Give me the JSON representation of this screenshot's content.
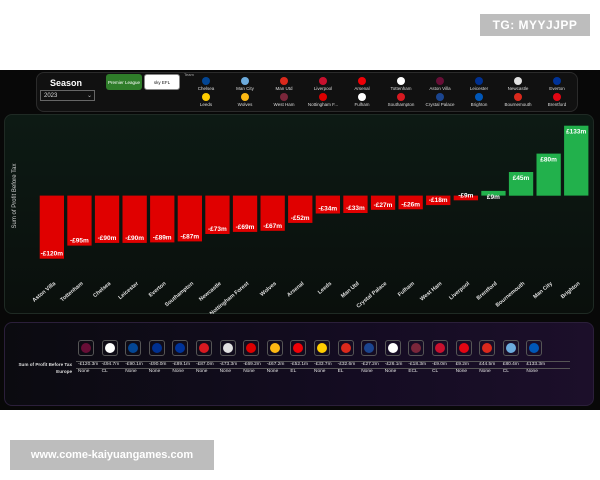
{
  "overlay": {
    "telegram": "TG: MYYJJPP",
    "website": "www.come-kaiyuangames.com"
  },
  "filters": {
    "season_label": "Season",
    "season_value": "2023",
    "team_heading": "Team",
    "leagues": [
      {
        "name": "Premier League",
        "color": "#2f7d2a"
      },
      {
        "name": "sky EFL",
        "color": "#ffffff"
      }
    ],
    "teams": [
      {
        "name": "Chelsea",
        "color": "#034694"
      },
      {
        "name": "Man City",
        "color": "#6cabdd"
      },
      {
        "name": "Man Utd",
        "color": "#da291c"
      },
      {
        "name": "Liverpool",
        "color": "#c8102e"
      },
      {
        "name": "Arsenal",
        "color": "#ef0107"
      },
      {
        "name": "Tottenham",
        "color": "#ffffff"
      },
      {
        "name": "Aston Villa",
        "color": "#670e36"
      },
      {
        "name": "Leicester",
        "color": "#003090"
      },
      {
        "name": "Newcastle",
        "color": "#e0e0e0"
      },
      {
        "name": "Everton",
        "color": "#003399"
      },
      {
        "name": "Leeds",
        "color": "#ffcd00"
      },
      {
        "name": "Wolves",
        "color": "#fdb913"
      },
      {
        "name": "West Ham",
        "color": "#7a263a"
      },
      {
        "name": "Nottingham F...",
        "color": "#dd0000"
      },
      {
        "name": "Fulham",
        "color": "#ffffff"
      },
      {
        "name": "Southampton",
        "color": "#d71920"
      },
      {
        "name": "Crystal Palace",
        "color": "#1b458f"
      },
      {
        "name": "Brighton",
        "color": "#0057b8"
      },
      {
        "name": "Bournemouth",
        "color": "#da291c"
      },
      {
        "name": "Brentford",
        "color": "#e30613"
      }
    ]
  },
  "chart_data": {
    "type": "bar",
    "ylabel": "Sum of Profit Before Tax",
    "categories": [
      "Aston Villa",
      "Tottenham",
      "Chelsea",
      "Leicester",
      "Everton",
      "Southampton",
      "Newcastle",
      "Nottingham Forest",
      "Wolves",
      "Arsenal",
      "Leeds",
      "Man Utd",
      "Crystal Palace",
      "Fulham",
      "West Ham",
      "Liverpool",
      "Brentford",
      "Bournemouth",
      "Man City",
      "Brighton"
    ],
    "values": [
      -120,
      -95,
      -90,
      -90,
      -89,
      -87,
      -73,
      -69,
      -67,
      -52,
      -34,
      -33,
      -27,
      -26,
      -18,
      -9,
      9,
      45,
      80,
      133
    ],
    "data_labels": [
      "-£120m",
      "-£95m",
      "-£90m",
      "-£90m",
      "-£89m",
      "-£87m",
      "-£73m",
      "-£69m",
      "-£67m",
      "-£52m",
      "-£34m",
      "-£33m",
      "-£27m",
      "-£26m",
      "-£18m",
      "-£9m",
      "£9m",
      "£45m",
      "£80m",
      "£133m"
    ],
    "ylim": [
      -130,
      140
    ],
    "positive_color": "#22b14c",
    "negative_color": "#e00000",
    "grid": false
  },
  "table": {
    "row_labels": [
      "Sum of Profit Before Tax",
      "Europe"
    ],
    "columns": [
      {
        "team": "Aston Villa",
        "color": "#670e36",
        "profit": "-£120.3m",
        "europe": "None"
      },
      {
        "team": "Tottenham",
        "color": "#ffffff",
        "profit": "-£94.7m",
        "europe": "CL"
      },
      {
        "team": "Chelsea",
        "color": "#034694",
        "profit": "-£90.1m",
        "europe": "None"
      },
      {
        "team": "Leicester",
        "color": "#003090",
        "profit": "-£90.0m",
        "europe": "None"
      },
      {
        "team": "Everton",
        "color": "#003399",
        "profit": "-£89.1m",
        "europe": "None"
      },
      {
        "team": "Southampton",
        "color": "#d71920",
        "profit": "-£87.0m",
        "europe": "None"
      },
      {
        "team": "Newcastle",
        "color": "#e0e0e0",
        "profit": "-£73.3m",
        "europe": "None"
      },
      {
        "team": "Nottingham Forest",
        "color": "#dd0000",
        "profit": "-£69.2m",
        "europe": "None"
      },
      {
        "team": "Wolves",
        "color": "#fdb913",
        "profit": "-£67.2m",
        "europe": "None"
      },
      {
        "team": "Arsenal",
        "color": "#ef0107",
        "profit": "-£52.1m",
        "europe": "EL"
      },
      {
        "team": "Leeds",
        "color": "#ffcd00",
        "profit": "-£33.7m",
        "europe": "None"
      },
      {
        "team": "Man Utd",
        "color": "#da291c",
        "profit": "-£32.6m",
        "europe": "EL"
      },
      {
        "team": "Crystal Palace",
        "color": "#1b458f",
        "profit": "-£27.2m",
        "europe": "None"
      },
      {
        "team": "Fulham",
        "color": "#ffffff",
        "profit": "-£26.1m",
        "europe": "None"
      },
      {
        "team": "West Ham",
        "color": "#7a263a",
        "profit": "-£18.3m",
        "europe": "ECL"
      },
      {
        "team": "Liverpool",
        "color": "#c8102e",
        "profit": "-£9.0m",
        "europe": "CL"
      },
      {
        "team": "Brentford",
        "color": "#e30613",
        "profit": "£9.2m",
        "europe": "None"
      },
      {
        "team": "Bournemouth",
        "color": "#da291c",
        "profit": "£44.5m",
        "europe": "None"
      },
      {
        "team": "Man City",
        "color": "#6cabdd",
        "profit": "£80.4m",
        "europe": "CL"
      },
      {
        "team": "Brighton",
        "color": "#0057b8",
        "profit": "£133.3m",
        "europe": "None"
      }
    ]
  }
}
